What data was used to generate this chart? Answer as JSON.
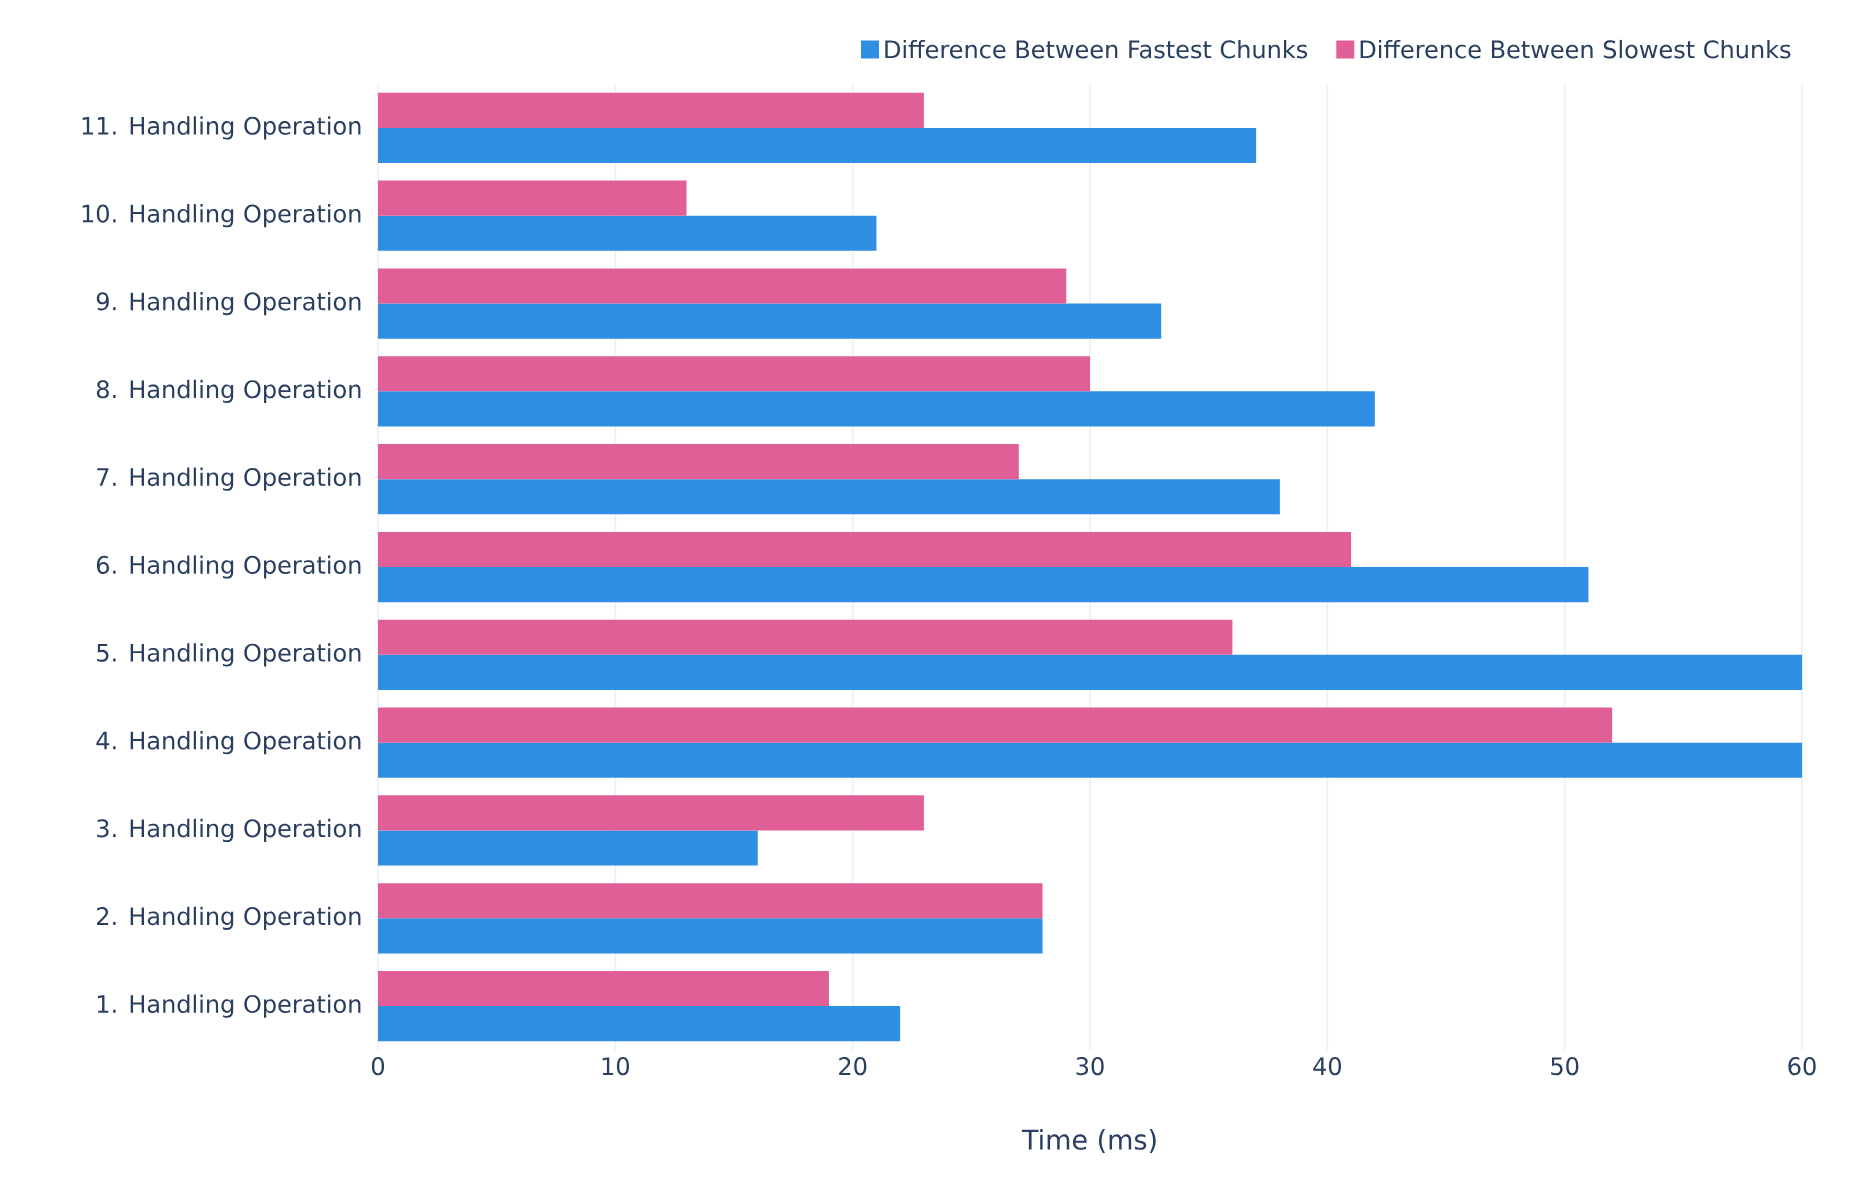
{
  "chart_data": {
    "type": "bar",
    "orientation": "horizontal",
    "xlabel": "Time (ms)",
    "categories": [
      "11. Handling Operation",
      "10. Handling Operation",
      "9. Handling Operation",
      "8. Handling Operation",
      "7. Handling Operation",
      "6. Handling Operation",
      "5. Handling Operation",
      "4. Handling Operation",
      "3. Handling Operation",
      "2. Handling Operation",
      "1. Handling Operation"
    ],
    "series": [
      {
        "name": "Difference Between Fastest Chunks",
        "color": "#2e8fe3",
        "values": [
          37,
          21,
          33,
          42,
          38,
          51,
          60,
          60,
          16,
          28,
          22
        ]
      },
      {
        "name": "Difference Between Slowest Chunks",
        "color": "#e05f97",
        "values": [
          23,
          13,
          29,
          30,
          27,
          41,
          36,
          52,
          23,
          28,
          19
        ]
      }
    ],
    "xlim": [
      0,
      60
    ],
    "xticks": [
      0,
      10,
      20,
      30,
      40,
      50,
      60
    ],
    "grid": "x",
    "legend": "top right"
  }
}
